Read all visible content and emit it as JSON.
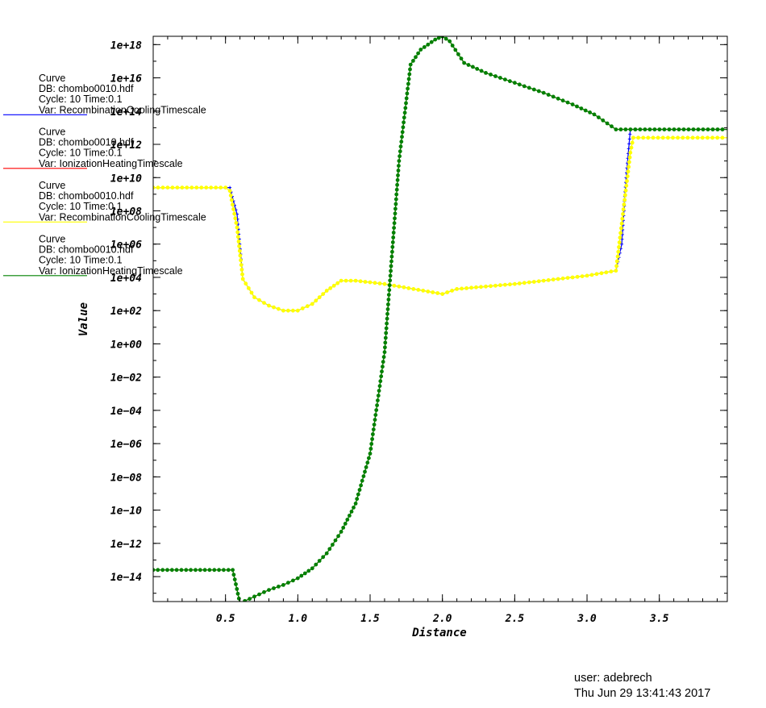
{
  "chart_data": {
    "type": "line",
    "xlabel": "Distance",
    "ylabel": "Value",
    "y_scale": "log",
    "xlim": [
      0,
      3.97
    ],
    "ylim_log10": [
      -15.5,
      18.5
    ],
    "x_ticks": [
      0.5,
      1.0,
      1.5,
      2.0,
      2.5,
      3.0,
      3.5
    ],
    "x_tick_labels": [
      "0.5",
      "1.0",
      "1.5",
      "2.0",
      "2.5",
      "3.0",
      "3.5"
    ],
    "y_ticks_log10": [
      18,
      16,
      14,
      12,
      10,
      8,
      6,
      4,
      2,
      0,
      -2,
      -4,
      -6,
      -8,
      -10,
      -12,
      -14
    ],
    "y_tick_labels": [
      "1e+18",
      "1e+16",
      "1e+14",
      "1e+12",
      "1e+10",
      "1e+08",
      "1e+06",
      "1e+04",
      "1e+02",
      "1e+00",
      "1e−02",
      "1e−04",
      "1e−06",
      "1e−08",
      "1e−10",
      "1e−12",
      "1e−14"
    ],
    "series": [
      {
        "legend": {
          "l1": "Curve",
          "l2": "DB: chombo0010.hdf",
          "l3": "Cycle: 10       Time:0.1",
          "l4": "Var: RecombinationCoolingTimescale"
        },
        "color": "#0000ff",
        "marker": "plus",
        "x": [
          0,
          0.53,
          0.58,
          0.62,
          0.7,
          0.8,
          0.9,
          1.0,
          1.1,
          1.2,
          1.3,
          1.4,
          1.6,
          1.8,
          2.0,
          2.1,
          2.5,
          3.0,
          3.2,
          3.24,
          3.27,
          3.3,
          3.97
        ],
        "y_log10": [
          9.4,
          9.4,
          7.8,
          3.9,
          2.8,
          2.3,
          2.0,
          2.0,
          2.4,
          3.2,
          3.8,
          3.8,
          3.6,
          3.3,
          3.0,
          3.3,
          3.6,
          4.1,
          4.4,
          6.0,
          10.0,
          12.9,
          12.9
        ]
      },
      {
        "legend": {
          "l1": "Curve",
          "l2": "DB: chombo0010.hdf",
          "l3": "Cycle: 10       Time:0.1",
          "l4": "Var: IonizationHeatingTimescale"
        },
        "color": "#ff0000",
        "marker": "plus",
        "x": [
          0,
          0.52,
          0.55,
          0.6,
          0.7,
          0.8,
          0.9,
          1.0,
          1.1,
          1.2,
          1.3,
          1.4,
          1.5,
          1.6,
          1.7,
          1.78,
          1.85,
          1.95,
          2.0,
          2.05,
          2.15,
          2.3,
          2.5,
          2.7,
          2.9,
          3.05,
          3.2,
          3.97
        ],
        "y_log10": [
          -13.6,
          -13.6,
          -13.6,
          -15.6,
          -15.2,
          -14.8,
          -14.5,
          -14.1,
          -13.5,
          -12.6,
          -11.3,
          -9.6,
          -6.6,
          -0.5,
          11.0,
          16.8,
          17.7,
          18.3,
          18.5,
          18.2,
          16.9,
          16.3,
          15.7,
          15.1,
          14.4,
          13.8,
          12.9,
          12.9
        ]
      },
      {
        "legend": {
          "l1": "Curve",
          "l2": "DB: chombo0010.hdf",
          "l3": "Cycle: 10       Time:0.1",
          "l4": "Var: RecombinationCoolingTimescale"
        },
        "color": "#ffff00",
        "marker": "circle",
        "x": [
          0,
          0.5,
          0.53,
          0.58,
          0.62,
          0.7,
          0.8,
          0.9,
          1.0,
          1.1,
          1.2,
          1.3,
          1.4,
          1.6,
          1.8,
          2.0,
          2.1,
          2.5,
          3.0,
          3.2,
          3.3,
          3.32,
          3.97
        ],
        "y_log10": [
          9.4,
          9.4,
          9.2,
          7.0,
          3.9,
          2.8,
          2.3,
          2.0,
          2.0,
          2.4,
          3.2,
          3.8,
          3.8,
          3.6,
          3.3,
          3.0,
          3.3,
          3.6,
          4.1,
          4.4,
          11.5,
          12.4,
          12.4
        ]
      },
      {
        "legend": {
          "l1": "Curve",
          "l2": "DB: chombo0010.hdf",
          "l3": "Cycle: 10       Time:0.1",
          "l4": "Var: IonizationHeatingTimescale"
        },
        "color": "#008000",
        "marker": "circle",
        "x": [
          0,
          0.52,
          0.55,
          0.6,
          0.7,
          0.8,
          0.9,
          1.0,
          1.1,
          1.2,
          1.3,
          1.4,
          1.5,
          1.6,
          1.7,
          1.78,
          1.85,
          1.95,
          2.0,
          2.05,
          2.15,
          2.3,
          2.5,
          2.7,
          2.9,
          3.05,
          3.2,
          3.97
        ],
        "y_log10": [
          -13.6,
          -13.6,
          -13.6,
          -15.6,
          -15.2,
          -14.8,
          -14.5,
          -14.1,
          -13.5,
          -12.6,
          -11.3,
          -9.6,
          -6.6,
          -0.5,
          11.0,
          16.8,
          17.7,
          18.3,
          18.5,
          18.2,
          16.9,
          16.3,
          15.7,
          15.1,
          14.4,
          13.8,
          12.9,
          12.9
        ]
      }
    ]
  },
  "footer": {
    "user": "user: adebrech",
    "timestamp": "Thu Jun 29 13:41:43 2017"
  }
}
